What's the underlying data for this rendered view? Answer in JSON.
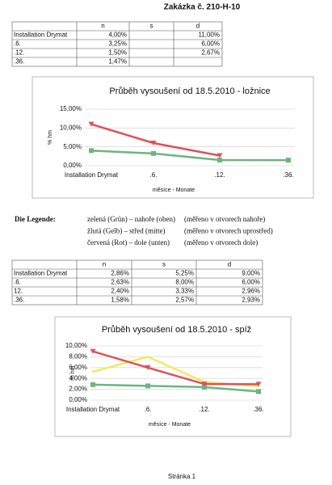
{
  "title": "Zakázka č. 210-H-10",
  "table1": {
    "header": [
      "n",
      "s",
      "d"
    ],
    "rows": [
      [
        "Installation Drymat",
        "4,00%",
        null,
        "11,00%"
      ],
      [
        ".6.",
        "3,25%",
        null,
        "6,00%"
      ],
      [
        ".12.",
        "1,50%",
        null,
        "2,67%"
      ],
      [
        ".36.",
        "1,47%",
        null,
        null
      ]
    ]
  },
  "legend": {
    "title": "Die Legende:",
    "lines": [
      [
        "zelená (Grün) – nahoře (oben)",
        "(měřeno v otvorech nahoře)"
      ],
      [
        "žlutá (Gelb) – střed (mitte)",
        "(měřeno v otvorech uprostřed)"
      ],
      [
        "červená (Rot) – dole (unten)",
        "(měřeno v otvorech dole)"
      ]
    ]
  },
  "table2": {
    "header": [
      "n",
      "s",
      "d"
    ],
    "rows": [
      [
        "Installation Drymat",
        "2,86%",
        "5,25%",
        "9,00%"
      ],
      [
        ".6.",
        "2,63%",
        "8,00%",
        "6,00%"
      ],
      [
        "12.",
        "2,40%",
        "3,33%",
        "2,96%"
      ],
      [
        ".36.",
        "1,58%",
        "2,57%",
        "2,93%"
      ]
    ]
  },
  "chart_data": [
    {
      "type": "line",
      "title": "Průběh vysoušení od 18.5.2010 - ložnice",
      "x_label": "měsíce - Monate",
      "y_label": "% hm",
      "categories": [
        "Installation Drymat",
        ".6.",
        ".12.",
        ".36."
      ],
      "ylim": [
        0,
        15
      ],
      "yticks": [
        {
          "value": 0,
          "label": "0,00%"
        },
        {
          "value": 5,
          "label": "5,00%"
        },
        {
          "value": 10,
          "label": "10,00%"
        },
        {
          "value": 15,
          "label": "15,00%"
        }
      ],
      "series": [
        {
          "color": "#6db57e",
          "marker": "square",
          "values": [
            4.0,
            3.25,
            1.5,
            1.47
          ]
        },
        {
          "color": "#e0505a",
          "marker": "triangle",
          "values": [
            11.0,
            6.0,
            2.67,
            null
          ]
        }
      ]
    },
    {
      "type": "line",
      "title": "Průběh vysoušení od 18.5.2010 - spíž",
      "x_label": "měsíce - Monate",
      "y_label": "% hm",
      "categories": [
        "Installation Drymat",
        ".6.",
        ".12.",
        ".36."
      ],
      "ylim": [
        0,
        10
      ],
      "yticks": [
        {
          "value": 0,
          "label": "0,00%"
        },
        {
          "value": 2,
          "label": "2,00%"
        },
        {
          "value": 4,
          "label": "4,00%"
        },
        {
          "value": 6,
          "label": "6,00%"
        },
        {
          "value": 8,
          "label": "8,00%"
        },
        {
          "value": 10,
          "label": "10,00%"
        }
      ],
      "series": [
        {
          "color": "#6db57e",
          "marker": "square",
          "values": [
            2.86,
            2.63,
            2.4,
            1.58
          ]
        },
        {
          "color": "#f5e85a",
          "marker": "none",
          "values": [
            5.25,
            8.0,
            3.33,
            2.57
          ]
        },
        {
          "color": "#e0505a",
          "marker": "triangle",
          "values": [
            9.0,
            6.0,
            2.96,
            2.93
          ]
        }
      ]
    }
  ],
  "footer": "Stránka 1"
}
